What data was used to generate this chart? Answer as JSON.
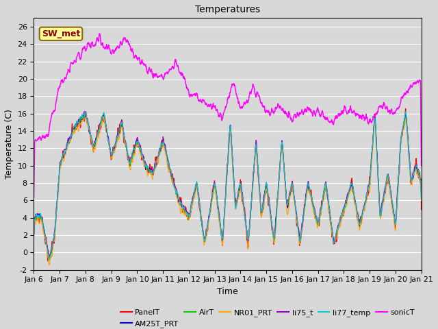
{
  "title": "Temperatures",
  "xlabel": "Time",
  "ylabel": "Temperature (C)",
  "ylim": [
    -2,
    27
  ],
  "n_days": 15,
  "annotation": "SW_met",
  "annotation_color": "#8B0000",
  "annotation_bg": "#FFFF99",
  "annotation_edge": "#8B6914",
  "plot_bg_color": "#D8D8D8",
  "fig_bg_color": "#D8D8D8",
  "grid_color": "#FFFFFF",
  "series_colors": {
    "PanelT": "#FF0000",
    "AM25T_PRT": "#0000CC",
    "AirT": "#00CC00",
    "NR01_PRT": "#FFA500",
    "li75_t": "#9900BB",
    "li77_temp": "#00CCCC",
    "sonicT": "#FF00FF"
  },
  "tick_fontsize": 8,
  "label_fontsize": 9,
  "title_fontsize": 10,
  "legend_fontsize": 8,
  "linewidth": 0.8
}
